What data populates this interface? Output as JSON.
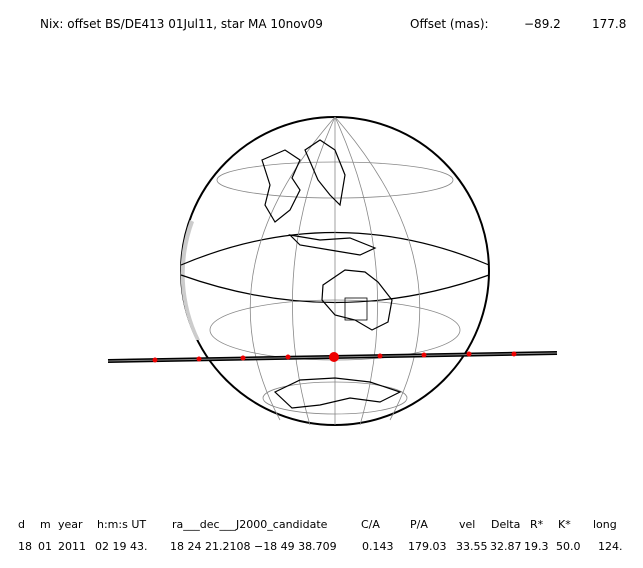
{
  "header": {
    "title": "Nix: offset BS/DE413 01Jul11, star MA 10nov09",
    "offset_label": "Offset (mas):",
    "offset_values": [
      "−89.2",
      "177.8"
    ]
  },
  "table": {
    "columns": [
      "d",
      "m",
      "year",
      "h:m:s UT",
      "ra___dec___J2000_candidate",
      "C/A",
      "P/A",
      "vel",
      "Delta",
      "R*",
      "K*",
      "long"
    ],
    "rows": [
      [
        "18",
        "01",
        "2011",
        "02 19 43.",
        "18 24 21.2108 −18 49 38.709",
        "0.143",
        "179.03",
        "33.55",
        "32.87",
        "19.3",
        "50.0",
        "124."
      ]
    ]
  }
}
